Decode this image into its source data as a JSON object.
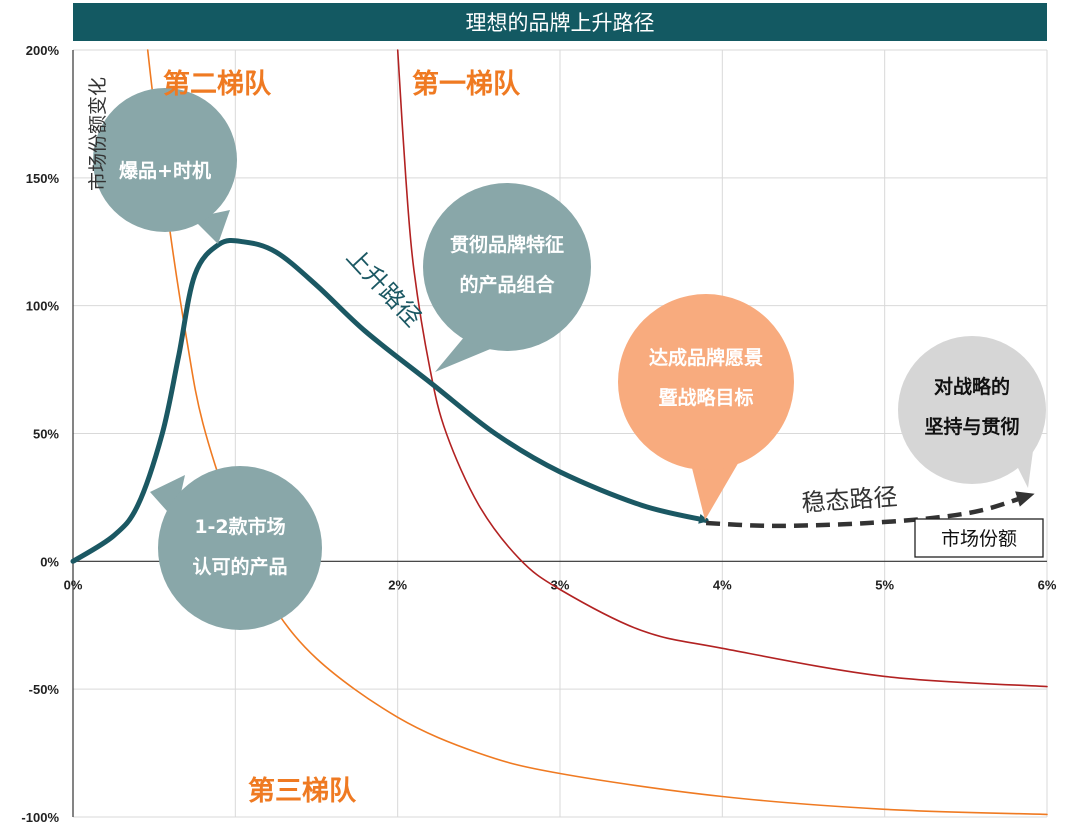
{
  "title": "理想的品牌上升路径",
  "chart_data": {
    "type": "line",
    "title": "理想的品牌上升路径",
    "xlabel": "市场份额",
    "ylabel": "市场份额变化",
    "xlim": [
      0,
      6
    ],
    "ylim": [
      -100,
      200
    ],
    "x_ticks": [
      "0%",
      "1%",
      "2%",
      "3%",
      "4%",
      "5%",
      "6%"
    ],
    "y_ticks": [
      "200%",
      "150%",
      "100%",
      "50%",
      "0%",
      "-50%",
      "-100%"
    ],
    "grid": true,
    "series": [
      {
        "name": "第二梯队",
        "color": "#ef7a22",
        "x": [
          0.46,
          0.5,
          0.6,
          0.7,
          0.8,
          1.0,
          1.2,
          1.5,
          2.0,
          2.5,
          3.0,
          4.0,
          5.0,
          6.0
        ],
        "y": [
          200,
          178,
          128,
          87,
          54,
          15,
          -14,
          -38,
          -61,
          -75,
          -83,
          -92,
          -97,
          -99
        ]
      },
      {
        "name": "第一梯队",
        "color": "#b22222",
        "x": [
          2.0,
          2.05,
          2.1,
          2.2,
          2.3,
          2.5,
          2.75,
          3.0,
          3.5,
          4.0,
          5.0,
          6.0
        ],
        "y": [
          200,
          150,
          114,
          75,
          50,
          22,
          1,
          -11,
          -27,
          -34,
          -45,
          -49
        ]
      },
      {
        "name": "上升路径",
        "color": "#1b5863",
        "x": [
          0,
          0.25,
          0.4,
          0.55,
          0.65,
          0.75,
          0.9,
          1.05,
          1.25,
          1.5,
          1.8,
          2.2,
          2.6,
          3.0,
          3.5,
          3.9
        ],
        "y": [
          0,
          10,
          22,
          50,
          80,
          112,
          124,
          125,
          121,
          108,
          90,
          70,
          50,
          35,
          22,
          16
        ]
      },
      {
        "name": "稳态路径",
        "color": "#333333",
        "x": [
          3.9,
          4.2,
          4.5,
          4.9,
          5.3,
          5.6,
          5.9
        ],
        "y": [
          15,
          14,
          14,
          15,
          17,
          20,
          26
        ]
      }
    ],
    "annotations": {
      "tier_two": "第二梯队",
      "tier_one": "第一梯队",
      "tier_three": "第三梯队",
      "rising_path": "上升路径",
      "steady_path": "稳态路径",
      "x_axis_box": "市场份额",
      "y_axis_text": "市场份额变化"
    },
    "bubbles": [
      {
        "lines": [
          "爆品+时机"
        ],
        "fill": "#89a7a9",
        "text_color": "#ffffff"
      },
      {
        "lines": [
          "贯彻品牌特征",
          "的产品组合"
        ],
        "fill": "#89a7a9",
        "text_color": "#ffffff"
      },
      {
        "lines": [
          "达成品牌愿景",
          "暨战略目标"
        ],
        "fill": "#f8ab7e",
        "text_color": "#ffffff"
      },
      {
        "lines": [
          "对战略的",
          "坚持与贯彻"
        ],
        "fill": "#d6d6d6",
        "text_color": "#111111"
      },
      {
        "lines": [
          "1-2款市场",
          "认可的产品"
        ],
        "fill": "#89a7a9",
        "text_color": "#ffffff"
      }
    ]
  }
}
